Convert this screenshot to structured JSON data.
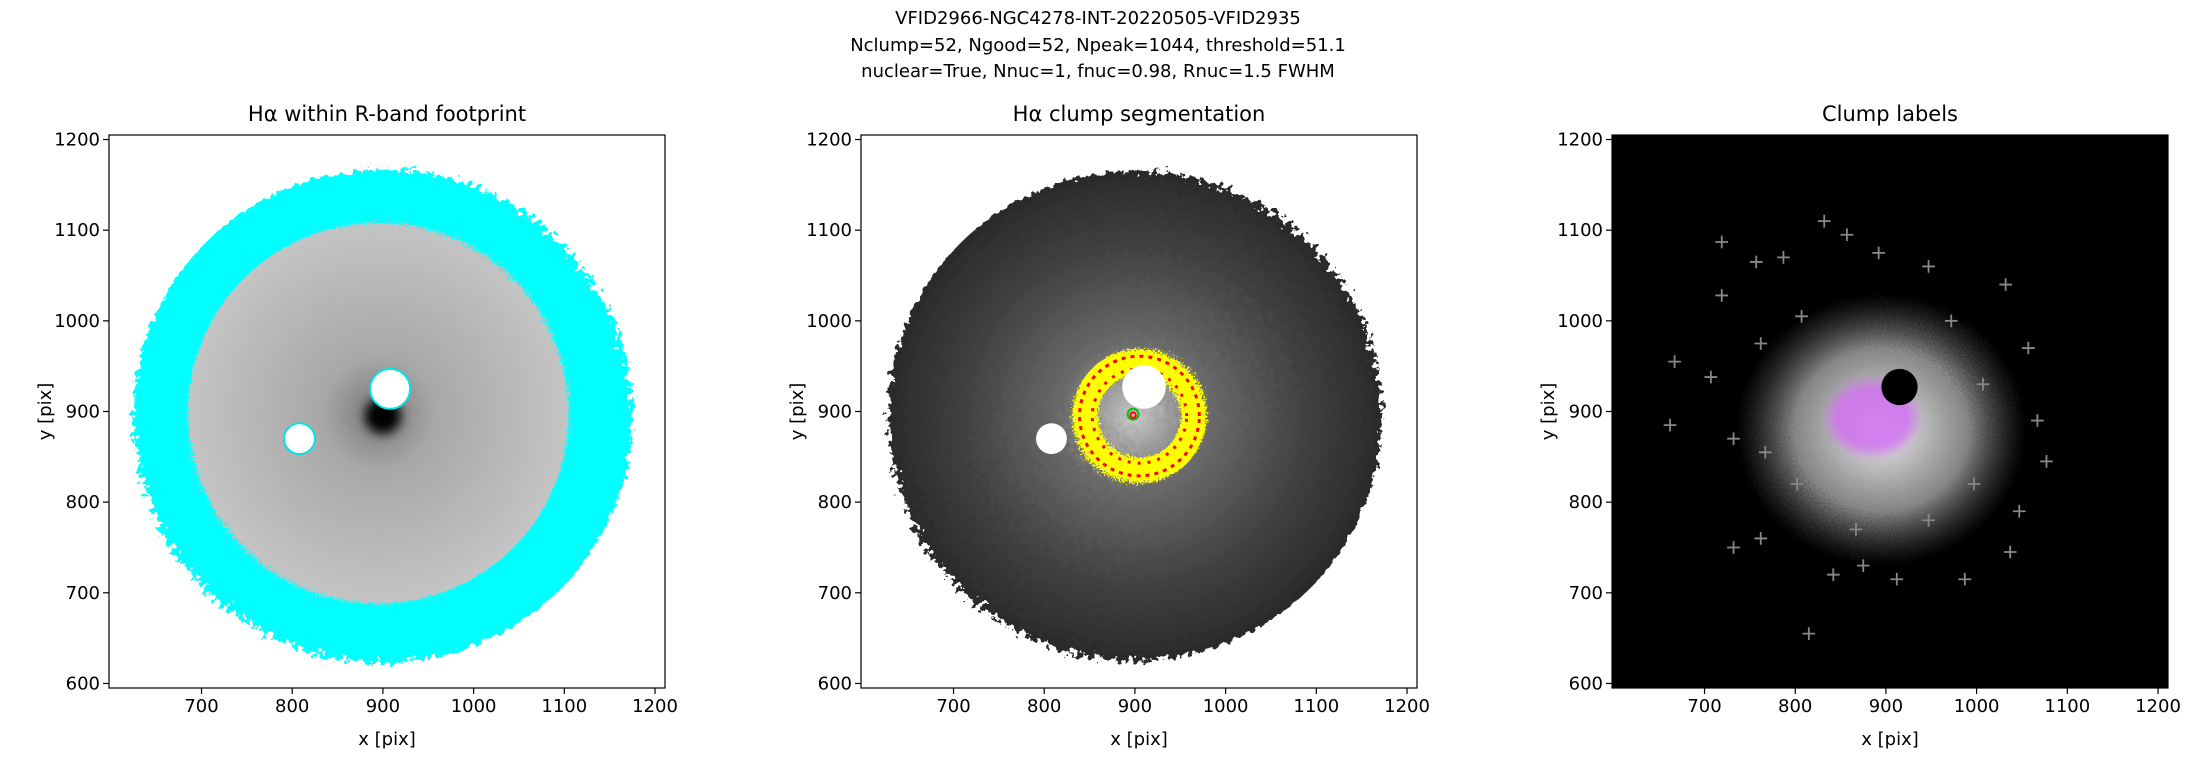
{
  "suptitle": [
    "VFID2966-NGC4278-INT-20220505-VFID2935",
    "Nclump=52, Ngood=52, Npeak=1044, threshold=51.1",
    "nuclear=True, Nnuc=1, fnuc=0.98, Rnuc=1.5 FWHM"
  ],
  "chart_data": [
    {
      "type": "image",
      "title": "Hα within R-band footprint",
      "xlabel": "x [pix]",
      "ylabel": "y [pix]",
      "xlim": [
        598,
        1211
      ],
      "ylim": [
        595,
        1205
      ],
      "xticks": [
        700,
        800,
        900,
        1000,
        1100,
        1200
      ],
      "yticks": [
        600,
        700,
        800,
        900,
        1000,
        1100,
        1200
      ]
    },
    {
      "type": "image",
      "title": "Hα clump segmentation",
      "xlabel": "x [pix]",
      "ylabel": "y [pix]",
      "xlim": [
        598,
        1211
      ],
      "ylim": [
        595,
        1205
      ],
      "xticks": [
        700,
        800,
        900,
        1000,
        1100,
        1200
      ],
      "yticks": [
        600,
        700,
        800,
        900,
        1000,
        1100,
        1200
      ]
    },
    {
      "type": "image",
      "title": "Clump labels",
      "xlabel": "x [pix]",
      "ylabel": "y [pix]",
      "xlim": [
        598,
        1211
      ],
      "ylim": [
        595,
        1205
      ],
      "xticks": [
        700,
        800,
        900,
        1000,
        1100,
        1200
      ],
      "yticks": [
        600,
        700,
        800,
        900,
        1000,
        1100,
        1200
      ]
    }
  ]
}
